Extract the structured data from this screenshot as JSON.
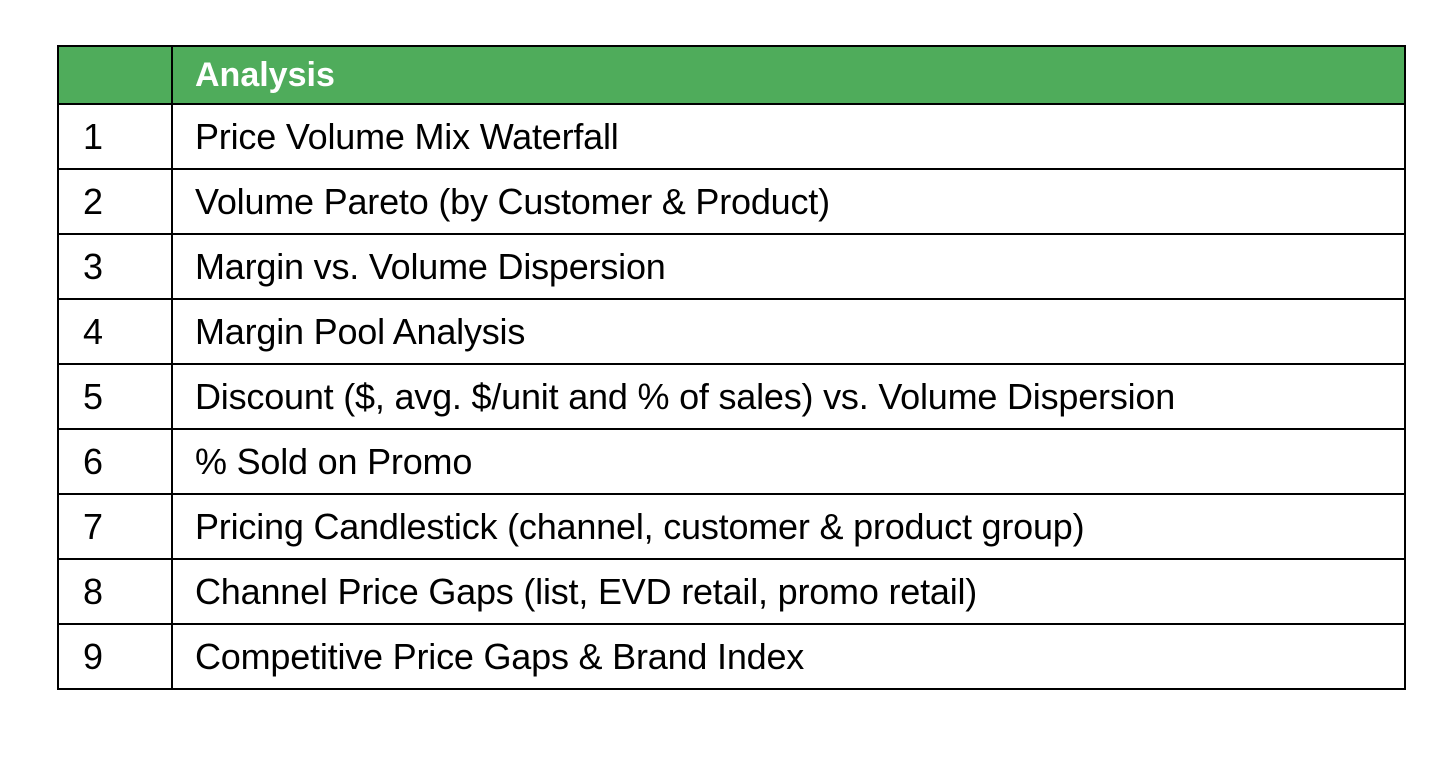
{
  "table": {
    "header": {
      "number_label": "",
      "analysis_label": "Analysis"
    },
    "colors": {
      "header_background": "#4fac5b",
      "header_text": "#ffffff",
      "border": "#000000"
    },
    "rows": [
      {
        "number": "1",
        "analysis": "Price Volume Mix Waterfall"
      },
      {
        "number": "2",
        "analysis": "Volume Pareto (by Customer & Product)"
      },
      {
        "number": "3",
        "analysis": "Margin vs. Volume Dispersion"
      },
      {
        "number": "4",
        "analysis": "Margin Pool Analysis"
      },
      {
        "number": "5",
        "analysis": "Discount ($, avg. $/unit and % of sales) vs. Volume Dispersion"
      },
      {
        "number": "6",
        "analysis": "% Sold on Promo"
      },
      {
        "number": "7",
        "analysis": "Pricing Candlestick (channel, customer & product group)"
      },
      {
        "number": "8",
        "analysis": "Channel Price Gaps (list, EVD retail, promo retail)"
      },
      {
        "number": "9",
        "analysis": "Competitive Price Gaps & Brand Index"
      }
    ]
  }
}
